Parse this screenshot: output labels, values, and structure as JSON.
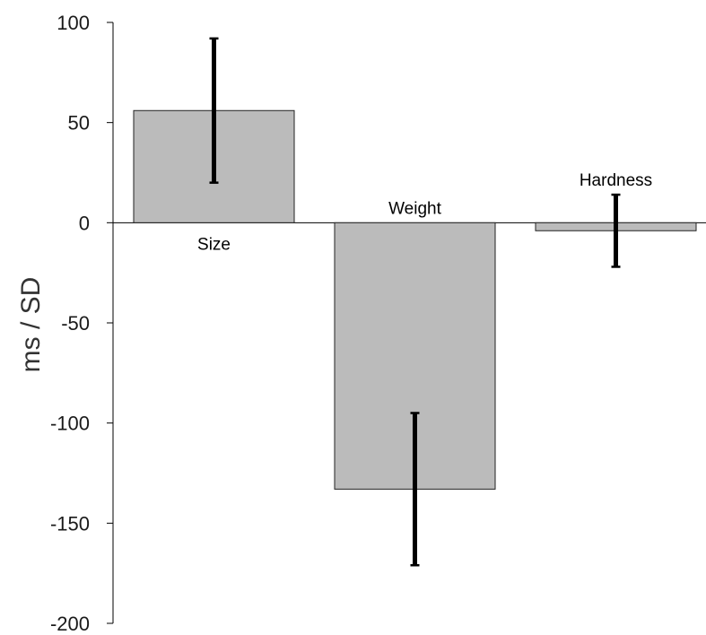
{
  "chart_data": {
    "type": "bar",
    "title": "",
    "xlabel": "",
    "ylabel": "ms / SD",
    "ylim": [
      -200,
      100
    ],
    "yticks": [
      100,
      50,
      0,
      -50,
      -100,
      -150,
      -200
    ],
    "ytick_labels": [
      "100",
      "50",
      "0",
      "-50",
      "-100",
      "-150",
      "-200"
    ],
    "grid": false,
    "categories": [
      "Size",
      "Weight",
      "Hardness"
    ],
    "values": [
      56,
      -133,
      -4
    ],
    "error_low": [
      20,
      -171,
      -22
    ],
    "error_high": [
      92,
      -95,
      14
    ],
    "colors": {
      "bar_fill": "#bbbbbb",
      "bar_stroke": "#222222",
      "error_bar": "#000000"
    }
  }
}
